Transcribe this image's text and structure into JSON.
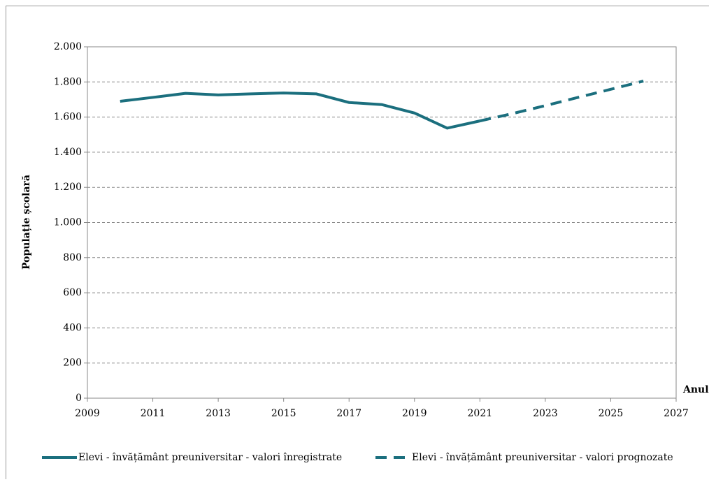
{
  "chart_data": {
    "type": "line",
    "y_label": "Populație școlară",
    "x_label": "Anul",
    "x": [
      2010,
      2011,
      2012,
      2013,
      2014,
      2015,
      2016,
      2017,
      2018,
      2019,
      2020,
      2021,
      2022,
      2023,
      2024,
      2025,
      2026
    ],
    "series": [
      {
        "name": "Elevi - învățământ preuniversitar - valori înregistrate",
        "color": "#1b6f7e",
        "dash": false,
        "values": [
          1690,
          1712,
          1735,
          1726,
          1732,
          1737,
          1732,
          1683,
          1671,
          1623,
          1537,
          1578,
          null,
          null,
          null,
          null,
          null
        ]
      },
      {
        "name": "Elevi - învățământ preuniversitar - valori prognozate",
        "color": "#1b6f7e",
        "dash": true,
        "values": [
          null,
          null,
          null,
          null,
          null,
          null,
          null,
          null,
          null,
          null,
          null,
          1578,
          1620,
          1665,
          1712,
          1758,
          1805
        ]
      }
    ],
    "xlim": [
      2009,
      2027
    ],
    "xticks": [
      2009,
      2011,
      2013,
      2015,
      2017,
      2019,
      2021,
      2023,
      2025,
      2027
    ],
    "ylim": [
      0,
      2000
    ],
    "yticks": [
      0,
      200,
      400,
      600,
      800,
      {
        "value": 1000,
        "label": "1.000"
      },
      {
        "value": 1200,
        "label": "1.200"
      },
      {
        "value": 1400,
        "label": "1.400"
      },
      {
        "value": 1600,
        "label": "1.600"
      },
      {
        "value": 1800,
        "label": "1.800"
      },
      {
        "value": 2000,
        "label": "2.000"
      }
    ],
    "grid": true,
    "legend": "bottom"
  }
}
